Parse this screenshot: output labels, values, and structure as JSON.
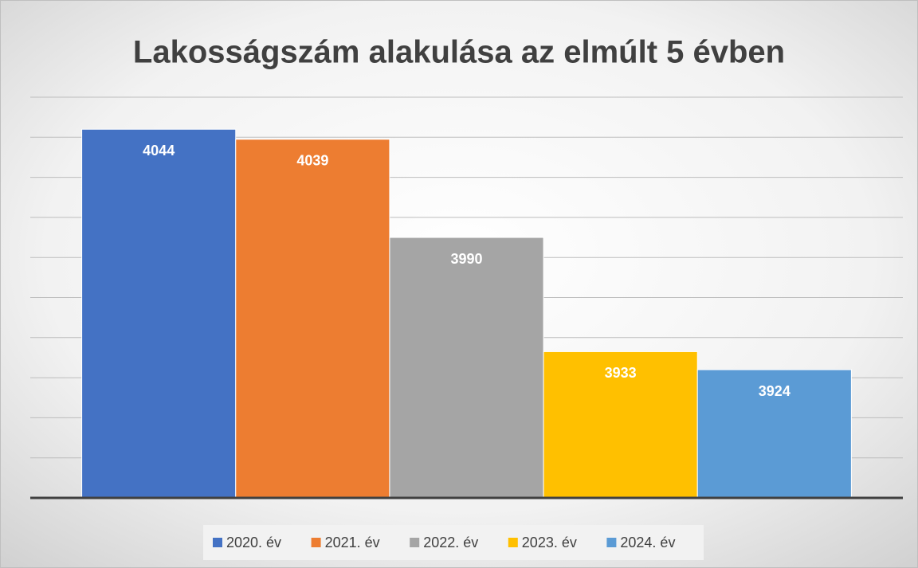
{
  "chart_data": {
    "type": "bar",
    "title": "Lakosságszám alakulása az elmúlt 5 évben",
    "categories": [
      null
    ],
    "series": [
      {
        "name": "2020. év",
        "color": "#4472c4",
        "values": [
          4044
        ]
      },
      {
        "name": "2021. év",
        "color": "#ed7d31",
        "values": [
          4039
        ]
      },
      {
        "name": "2022. év",
        "color": "#a5a5a5",
        "values": [
          3990
        ]
      },
      {
        "name": "2023. év",
        "color": "#ffc000",
        "values": [
          3933
        ]
      },
      {
        "name": "2024. év",
        "color": "#5b9bd5",
        "values": [
          3924
        ]
      }
    ],
    "ylim": [
      3860,
      4060
    ],
    "yticks": [
      3860,
      3880,
      3900,
      3920,
      3940,
      3960,
      3980,
      4000,
      4020,
      4040,
      4060
    ],
    "grid": true,
    "legend": "bottom"
  }
}
